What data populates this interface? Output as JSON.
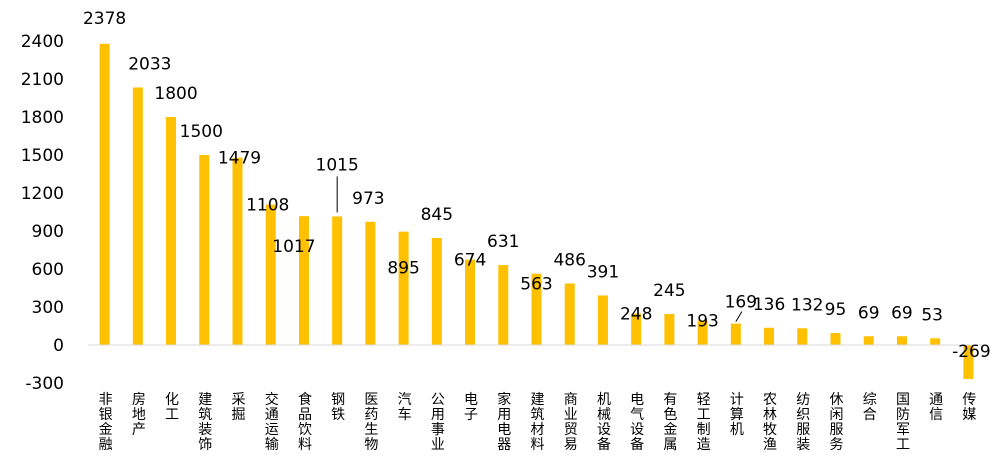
{
  "chart_data": {
    "type": "bar",
    "title": "",
    "xlabel": "",
    "ylabel": "",
    "ylim": [
      -300,
      2400
    ],
    "yticks": [
      -300,
      0,
      300,
      600,
      900,
      1200,
      1500,
      1800,
      2100,
      2400
    ],
    "grid": false,
    "legend": "none",
    "bar_color": "#FFC000",
    "categories": [
      "非银金融",
      "房地产",
      "化工",
      "建筑装饰",
      "采掘",
      "交通运输",
      "食品饮料",
      "钢铁",
      "医药生物",
      "汽车",
      "公用事业",
      "电子",
      "家用电器",
      "建筑材料",
      "商业贸易",
      "机械设备",
      "电气设备",
      "有色金属",
      "轻工制造",
      "计算机",
      "农林牧渔",
      "纺织服装",
      "休闲服务",
      "综合",
      "国防军工",
      "通信",
      "传媒"
    ],
    "values": [
      2378,
      2033,
      1800,
      1500,
      1479,
      1108,
      1017,
      1015,
      973,
      895,
      845,
      674,
      631,
      563,
      486,
      391,
      248,
      245,
      193,
      169,
      136,
      132,
      95,
      69,
      69,
      53,
      -269
    ]
  }
}
